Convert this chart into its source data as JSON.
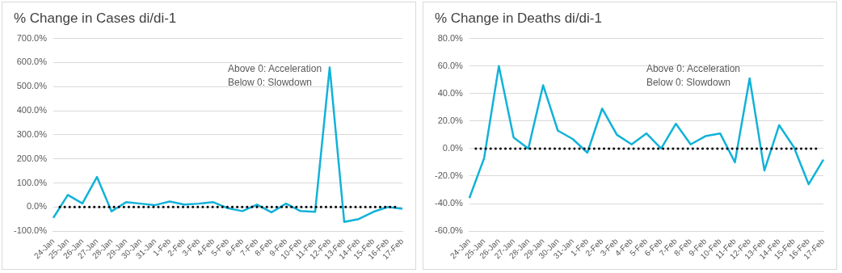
{
  "chart_data": [
    {
      "type": "line",
      "title": "% Change in Cases di/di-1",
      "categories": [
        "24-Jan",
        "25-Jan",
        "26-Jan",
        "27-Jan",
        "28-Jan",
        "29-Jan",
        "30-Jan",
        "31-Jan",
        "1-Feb",
        "2-Feb",
        "3-Feb",
        "4-Feb",
        "5-Feb",
        "6-Feb",
        "7-Feb",
        "8-Feb",
        "9-Feb",
        "10-Feb",
        "11-Feb",
        "12-Feb",
        "13-Feb",
        "14-Feb",
        "15-Feb",
        "16-Feb",
        "17-Feb"
      ],
      "series": [
        {
          "color": "#12b2d8",
          "values": [
            -45,
            50,
            15,
            125,
            -18,
            20,
            14,
            8,
            23,
            10,
            14,
            20,
            -5,
            -17,
            10,
            -22,
            14,
            -17,
            -20,
            580,
            -62,
            -50,
            -20,
            0,
            -7
          ]
        }
      ],
      "ylim": [
        -100,
        700
      ],
      "yticks": [
        {
          "value": -100,
          "label": "-100.0%"
        },
        {
          "value": 0,
          "label": "0.0%"
        },
        {
          "value": 100,
          "label": "100.0%"
        },
        {
          "value": 200,
          "label": "200.0%"
        },
        {
          "value": 300,
          "label": "300.0%"
        },
        {
          "value": 400,
          "label": "400.0%"
        },
        {
          "value": 500,
          "label": "500.0%"
        },
        {
          "value": 600,
          "label": "600.0%"
        },
        {
          "value": 700,
          "label": "700.0%"
        }
      ],
      "grid": "y",
      "legend": false,
      "marker": "none",
      "line_style": "solid",
      "ref_lines": [
        {
          "axis": "y",
          "value": 0,
          "color": "#000000",
          "line_style": "dotted"
        }
      ],
      "annotations": [
        "Above 0: Acceleration",
        "Below 0: Slowdown"
      ]
    },
    {
      "type": "line",
      "title": "% Change in Deaths di/di-1",
      "categories": [
        "24-Jan",
        "25-Jan",
        "26-Jan",
        "27-Jan",
        "28-Jan",
        "29-Jan",
        "30-Jan",
        "31-Jan",
        "1-Feb",
        "2-Feb",
        "3-Feb",
        "4-Feb",
        "5-Feb",
        "6-Feb",
        "7-Feb",
        "8-Feb",
        "9-Feb",
        "10-Feb",
        "11-Feb",
        "12-Feb",
        "13-Feb",
        "14-Feb",
        "15-Feb",
        "16-Feb",
        "17-Feb"
      ],
      "series": [
        {
          "color": "#12b2d8",
          "values": [
            -36,
            -7,
            60,
            8,
            0,
            46,
            13,
            7,
            -3,
            29,
            10,
            3,
            11,
            0,
            18,
            3,
            9,
            11,
            -10,
            51,
            -16,
            17,
            1,
            -26,
            -8
          ]
        }
      ],
      "ylim": [
        -60,
        80
      ],
      "yticks": [
        {
          "value": -60,
          "label": "-60.0%"
        },
        {
          "value": -40,
          "label": "-40.0%"
        },
        {
          "value": -20,
          "label": "-20.0%"
        },
        {
          "value": 0,
          "label": "0.0%"
        },
        {
          "value": 20,
          "label": "20.0%"
        },
        {
          "value": 40,
          "label": "40.0%"
        },
        {
          "value": 60,
          "label": "60.0%"
        },
        {
          "value": 80,
          "label": "80.0%"
        }
      ],
      "grid": "y",
      "legend": false,
      "marker": "none",
      "line_style": "solid",
      "ref_lines": [
        {
          "axis": "y",
          "value": 0,
          "color": "#000000",
          "line_style": "dotted"
        }
      ],
      "annotations": [
        "Above 0: Acceleration",
        "Below 0: Slowdown"
      ]
    }
  ]
}
